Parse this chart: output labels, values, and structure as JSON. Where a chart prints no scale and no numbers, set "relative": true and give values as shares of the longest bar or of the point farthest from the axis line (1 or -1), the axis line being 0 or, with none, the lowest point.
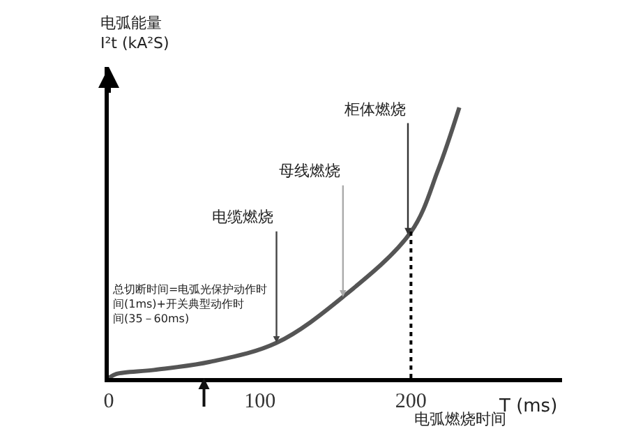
{
  "chart_data": {
    "type": "line",
    "relative": true,
    "xlabel": "T (ms)",
    "ylabel": "电弧能量\nI²t (kA²S)",
    "x": [
      0,
      5,
      30,
      67,
      111,
      155,
      200,
      218,
      232
    ],
    "series": [
      {
        "color": "#555555",
        "values": [
          0,
          0.015,
          0.03,
          0.06,
          0.13,
          0.3,
          0.54,
          0.77,
          1
        ]
      }
    ],
    "xlim": [
      0,
      300
    ],
    "xticks": [
      0,
      100,
      200
    ],
    "ref_lines": [
      {
        "axis": "x",
        "value": 200,
        "color": "#000000",
        "line_style": "dotted"
      }
    ],
    "annotations": [
      {
        "text": "电缆燃烧",
        "x": 111,
        "y": 0.13
      },
      {
        "text": "母线燃烧",
        "x": 155,
        "y": 0.3
      },
      {
        "text": "柜体燃烧",
        "x": 198,
        "y": 0.53
      },
      "总切断时间=电弧光保护动作时间(1ms)+开关典型动作时间(35－60ms)",
      "电弧燃烧时间"
    ],
    "marker": "none",
    "line_style": "solid"
  }
}
